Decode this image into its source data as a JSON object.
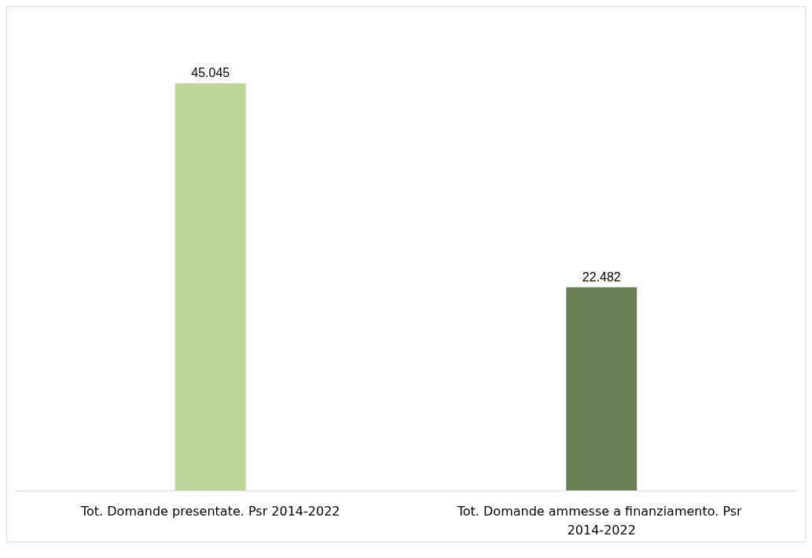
{
  "chart_data": {
    "type": "bar",
    "categories": [
      "Tot. Domande presentate. Psr 2014-2022",
      "Tot. Domande ammesse a finanziamento. Psr 2014-2022"
    ],
    "values": [
      45045,
      22482
    ],
    "colors": [
      "#bdd597",
      "#6b7f55"
    ],
    "value_labels": [
      "45.045",
      "22.482"
    ]
  }
}
